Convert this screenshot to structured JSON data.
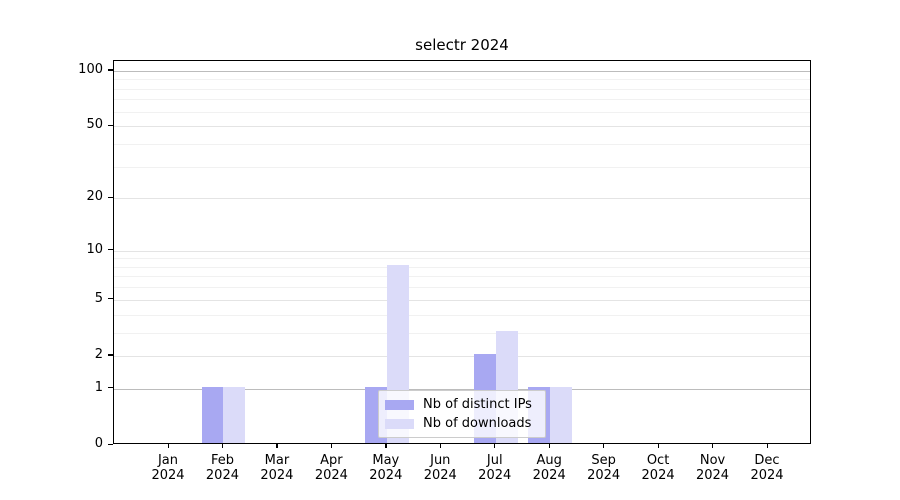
{
  "chart_data": {
    "type": "bar",
    "title": "selectr 2024",
    "xlabel": "",
    "ylabel": "",
    "categories": [
      "Jan 2024",
      "Feb 2024",
      "Mar 2024",
      "Apr 2024",
      "May 2024",
      "Jun 2024",
      "Jul 2024",
      "Aug 2024",
      "Sep 2024",
      "Oct 2024",
      "Nov 2024",
      "Dec 2024"
    ],
    "series": [
      {
        "name": "Nb of distinct IPs",
        "color": "#a8a8f2",
        "values": [
          0,
          1,
          0,
          0,
          1,
          0,
          2,
          1,
          0,
          0,
          0,
          0
        ]
      },
      {
        "name": "Nb of downloads",
        "color": "#dbdbf9",
        "values": [
          0,
          1,
          0,
          0,
          8,
          0,
          3,
          1,
          0,
          0,
          0,
          0
        ]
      }
    ],
    "yscale": "log1p",
    "ylim": [
      0,
      113
    ],
    "y_major_ticks": [
      0,
      1,
      2,
      5,
      10,
      20,
      50,
      100
    ],
    "y_minor_gridlines": [
      3,
      4,
      6,
      7,
      8,
      9,
      30,
      40,
      60,
      70,
      80,
      90
    ],
    "y_emphasis_gridlines": [
      1,
      100
    ],
    "grid": "horizontal-only",
    "legend_position": "lower center"
  },
  "colors": {
    "grid_major": "#e4e4e4",
    "grid_minor": "#f1f1f1",
    "grid_emphasis": "#bcbcbc",
    "spine": "#000000",
    "legend_border": "#cccccc",
    "text": "#000000"
  }
}
